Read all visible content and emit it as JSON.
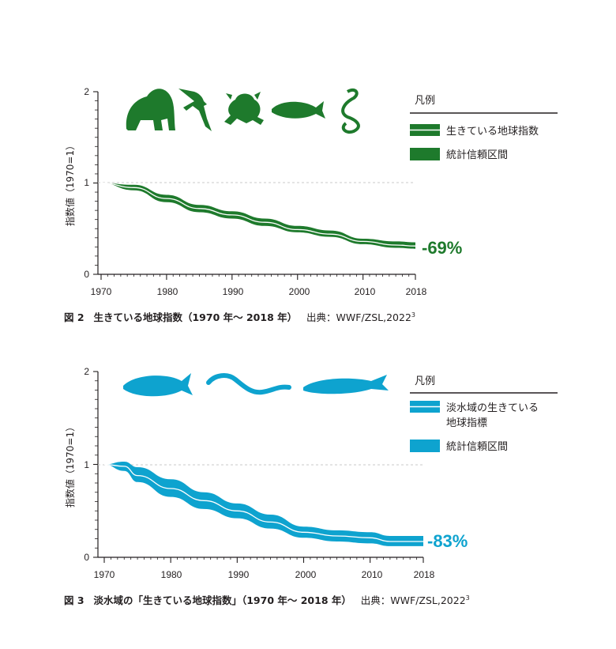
{
  "colors": {
    "green": "#1e7a2c",
    "blue": "#0ea3cf",
    "axis": "#231f20",
    "refline": "#c8c8c8"
  },
  "icons": {
    "fig2": [
      "gorilla-icon",
      "bird-icon",
      "frog-icon",
      "fish-icon",
      "snake-icon"
    ],
    "fig3": [
      "fish-icon",
      "eel-icon",
      "sturgeon-icon"
    ]
  },
  "chart_data": [
    {
      "type": "area",
      "x": [
        1970,
        1975,
        1980,
        1985,
        1990,
        1995,
        2000,
        2005,
        2010,
        2015,
        2018
      ],
      "series": [
        {
          "name": "生きている地球指数",
          "values": [
            1.0,
            0.95,
            0.83,
            0.72,
            0.65,
            0.57,
            0.49,
            0.44,
            0.36,
            0.32,
            0.31
          ]
        },
        {
          "name": "統計信頼区間",
          "lower": [
            1.0,
            0.92,
            0.79,
            0.68,
            0.61,
            0.53,
            0.46,
            0.41,
            0.33,
            0.29,
            0.28
          ],
          "upper": [
            1.0,
            0.98,
            0.87,
            0.76,
            0.69,
            0.61,
            0.53,
            0.48,
            0.39,
            0.36,
            0.35
          ]
        }
      ],
      "xlim": [
        1970,
        2018
      ],
      "ylim": [
        0,
        2
      ],
      "xticks": [
        "1970",
        "1980",
        "1990",
        "2000",
        "2010",
        "2018"
      ],
      "yticks": [
        "0",
        "1",
        "2"
      ],
      "ylabel": "指数値（1970=1）",
      "legend_title": "凡例",
      "legend": [
        "生きている地球指数",
        "統計信頼区間"
      ],
      "annotation": "-69%",
      "caption": {
        "num": "図 2",
        "text": "生きている地球指数（1970 年〜 2018 年）",
        "source": "出典：WWF/ZSL,2022",
        "sup": "3"
      }
    },
    {
      "type": "area",
      "x": [
        1970,
        1973,
        1975,
        1980,
        1985,
        1990,
        1995,
        2000,
        2005,
        2010,
        2013,
        2018
      ],
      "series": [
        {
          "name": "淡水域の生きている地球指標",
          "values": [
            1.0,
            0.98,
            0.88,
            0.74,
            0.61,
            0.5,
            0.38,
            0.27,
            0.23,
            0.21,
            0.17,
            0.17
          ]
        },
        {
          "name": "統計信頼区間",
          "lower": [
            1.0,
            0.93,
            0.81,
            0.65,
            0.52,
            0.42,
            0.31,
            0.21,
            0.17,
            0.15,
            0.12,
            0.12
          ],
          "upper": [
            1.0,
            1.03,
            0.97,
            0.84,
            0.7,
            0.58,
            0.46,
            0.33,
            0.29,
            0.27,
            0.23,
            0.23
          ]
        }
      ],
      "xlim": [
        1970,
        2018
      ],
      "ylim": [
        0,
        2
      ],
      "xticks": [
        "1970",
        "1980",
        "1990",
        "2000",
        "2010",
        "2018"
      ],
      "yticks": [
        "0",
        "1",
        "2"
      ],
      "ylabel": "指数値（1970=1）",
      "legend_title": "凡例",
      "legend": [
        "淡水域の生きている",
        "地球指標",
        "統計信頼区間"
      ],
      "annotation": "-83%",
      "caption": {
        "num": "図 3",
        "text": "淡水域の「生きている地球指数」（1970 年〜 2018 年）",
        "source": "出典：WWF/ZSL,2022",
        "sup": "3"
      }
    }
  ]
}
